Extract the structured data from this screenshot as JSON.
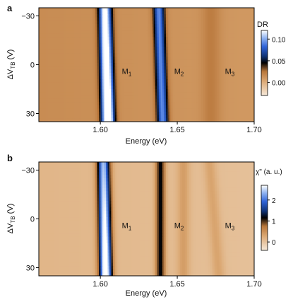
{
  "chart_data": [
    {
      "panel_label": "a",
      "type": "heatmap",
      "xlabel": "Energy (eV)",
      "ylabel_main": "ΔV",
      "ylabel_sub": "TB",
      "ylabel_unit": " (V)",
      "xlim": [
        1.56,
        1.7
      ],
      "ylim": [
        -35,
        35
      ],
      "y_inverted": true,
      "xticks": [
        {
          "value": 1.6,
          "label": "1.60"
        },
        {
          "value": 1.65,
          "label": "1.65"
        },
        {
          "value": 1.7,
          "label": "1.70"
        }
      ],
      "yticks": [
        {
          "value": -30,
          "label": "−30"
        },
        {
          "value": 0,
          "label": "0"
        },
        {
          "value": 30,
          "label": "30"
        }
      ],
      "colorbar": {
        "title": "DR",
        "min": -0.03,
        "max": 0.12,
        "ticks": [
          {
            "value": 0.1,
            "label": "0.10"
          },
          {
            "value": 0.05,
            "label": "0.05"
          },
          {
            "value": 0.0,
            "label": "0.00"
          }
        ]
      },
      "annotations": [
        {
          "main": "M",
          "sub": "1",
          "x": 1.614,
          "y": 4
        },
        {
          "main": "M",
          "sub": "2",
          "x": 1.648,
          "y": 4
        },
        {
          "main": "M",
          "sub": "3",
          "x": 1.681,
          "y": 4
        }
      ],
      "features": [
        {
          "name": "bright",
          "center": 1.603,
          "width": 0.004,
          "amp": 0.14,
          "drift": 0.002
        },
        {
          "name": "dark",
          "center": 1.638,
          "width": 0.0035,
          "amp": 0.085,
          "drift": 0.0025
        },
        {
          "name": "M3",
          "center": 1.672,
          "width": 0.006,
          "amp": 0.012,
          "drift": 0.0
        }
      ],
      "background": 0.018
    },
    {
      "panel_label": "b",
      "type": "heatmap",
      "xlabel": "Energy (eV)",
      "ylabel_main": "ΔV",
      "ylabel_sub": "TB",
      "ylabel_unit": " (V)",
      "xlim": [
        1.56,
        1.7
      ],
      "ylim": [
        -35,
        35
      ],
      "y_inverted": true,
      "xticks": [
        {
          "value": 1.6,
          "label": "1.60"
        },
        {
          "value": 1.65,
          "label": "1.65"
        },
        {
          "value": 1.7,
          "label": "1.70"
        }
      ],
      "yticks": [
        {
          "value": -30,
          "label": "−30"
        },
        {
          "value": 0,
          "label": "0"
        },
        {
          "value": 30,
          "label": "30"
        }
      ],
      "colorbar": {
        "title": "χ\" (a. u.)",
        "min": -0.4,
        "max": 2.7,
        "ticks": [
          {
            "value": 2,
            "label": "2"
          },
          {
            "value": 1,
            "label": "1"
          },
          {
            "value": 0,
            "label": "0"
          }
        ]
      },
      "annotations": [
        {
          "main": "M",
          "sub": "1",
          "x": 1.614,
          "y": 4
        },
        {
          "main": "M",
          "sub": "2",
          "x": 1.648,
          "y": 4
        },
        {
          "main": "M",
          "sub": "3",
          "x": 1.681,
          "y": 4
        }
      ],
      "features": [
        {
          "name": "bright",
          "center": 1.602,
          "width": 0.004,
          "amp": 3.0,
          "drift": 0.0015
        },
        {
          "name": "dark",
          "center": 1.639,
          "width": 0.003,
          "amp": 1.25,
          "drift": 0.0
        },
        {
          "name": "M2",
          "center": 1.654,
          "width": 0.004,
          "amp": 0.35,
          "drift": 0.0
        },
        {
          "name": "M3",
          "center": 1.671,
          "width": 0.004,
          "amp": 0.3,
          "drift": 0.006
        }
      ],
      "background": 0.2
    }
  ],
  "colormap": [
    [
      0.0,
      "#f6e9d9"
    ],
    [
      0.22,
      "#dba873"
    ],
    [
      0.37,
      "#b8763a"
    ],
    [
      0.5,
      "#000000"
    ],
    [
      0.6,
      "#0e3172"
    ],
    [
      0.75,
      "#2f63d8"
    ],
    [
      0.88,
      "#8eb2f0"
    ],
    [
      1.0,
      "#ffffff"
    ]
  ]
}
